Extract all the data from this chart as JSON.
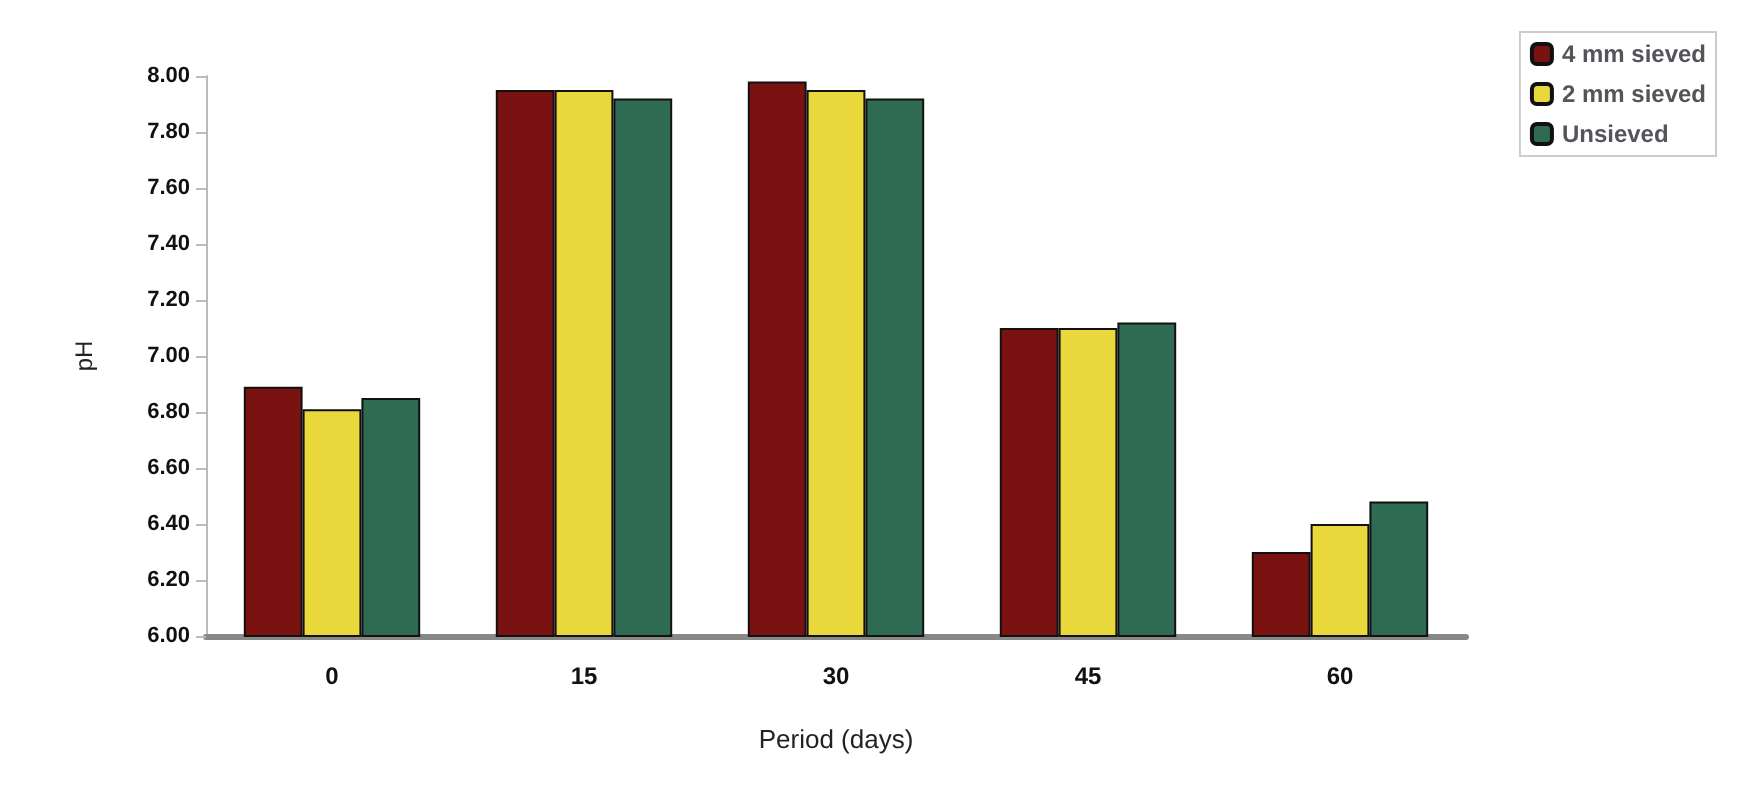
{
  "chart_data": {
    "type": "bar",
    "xlabel": "Period (days)",
    "ylabel": "pH",
    "categories": [
      "0",
      "15",
      "30",
      "45",
      "60"
    ],
    "series": [
      {
        "name": "4 mm sieved",
        "color": "#7a1212",
        "values": [
          6.89,
          7.95,
          7.98,
          7.1,
          6.3
        ]
      },
      {
        "name": "2 mm sieved",
        "color": "#e8d83c",
        "values": [
          6.81,
          7.95,
          7.95,
          7.1,
          6.4
        ]
      },
      {
        "name": "Unsieved",
        "color": "#2f6b52",
        "values": [
          6.85,
          7.92,
          7.92,
          7.12,
          6.48
        ]
      }
    ],
    "ylim": [
      6.0,
      8.0
    ],
    "yticks": [
      {
        "value": 6.0,
        "label": "6.00"
      },
      {
        "value": 6.2,
        "label": "6.20"
      },
      {
        "value": 6.4,
        "label": "6.40"
      },
      {
        "value": 6.6,
        "label": "6.60"
      },
      {
        "value": 6.8,
        "label": "6.80"
      },
      {
        "value": 7.0,
        "label": "7.00"
      },
      {
        "value": 7.2,
        "label": "7.20"
      },
      {
        "value": 7.4,
        "label": "7.40"
      },
      {
        "value": 7.6,
        "label": "7.60"
      },
      {
        "value": 7.8,
        "label": "7.80"
      },
      {
        "value": 8.0,
        "label": "8.00"
      }
    ],
    "grid": false,
    "legend": "top right"
  }
}
